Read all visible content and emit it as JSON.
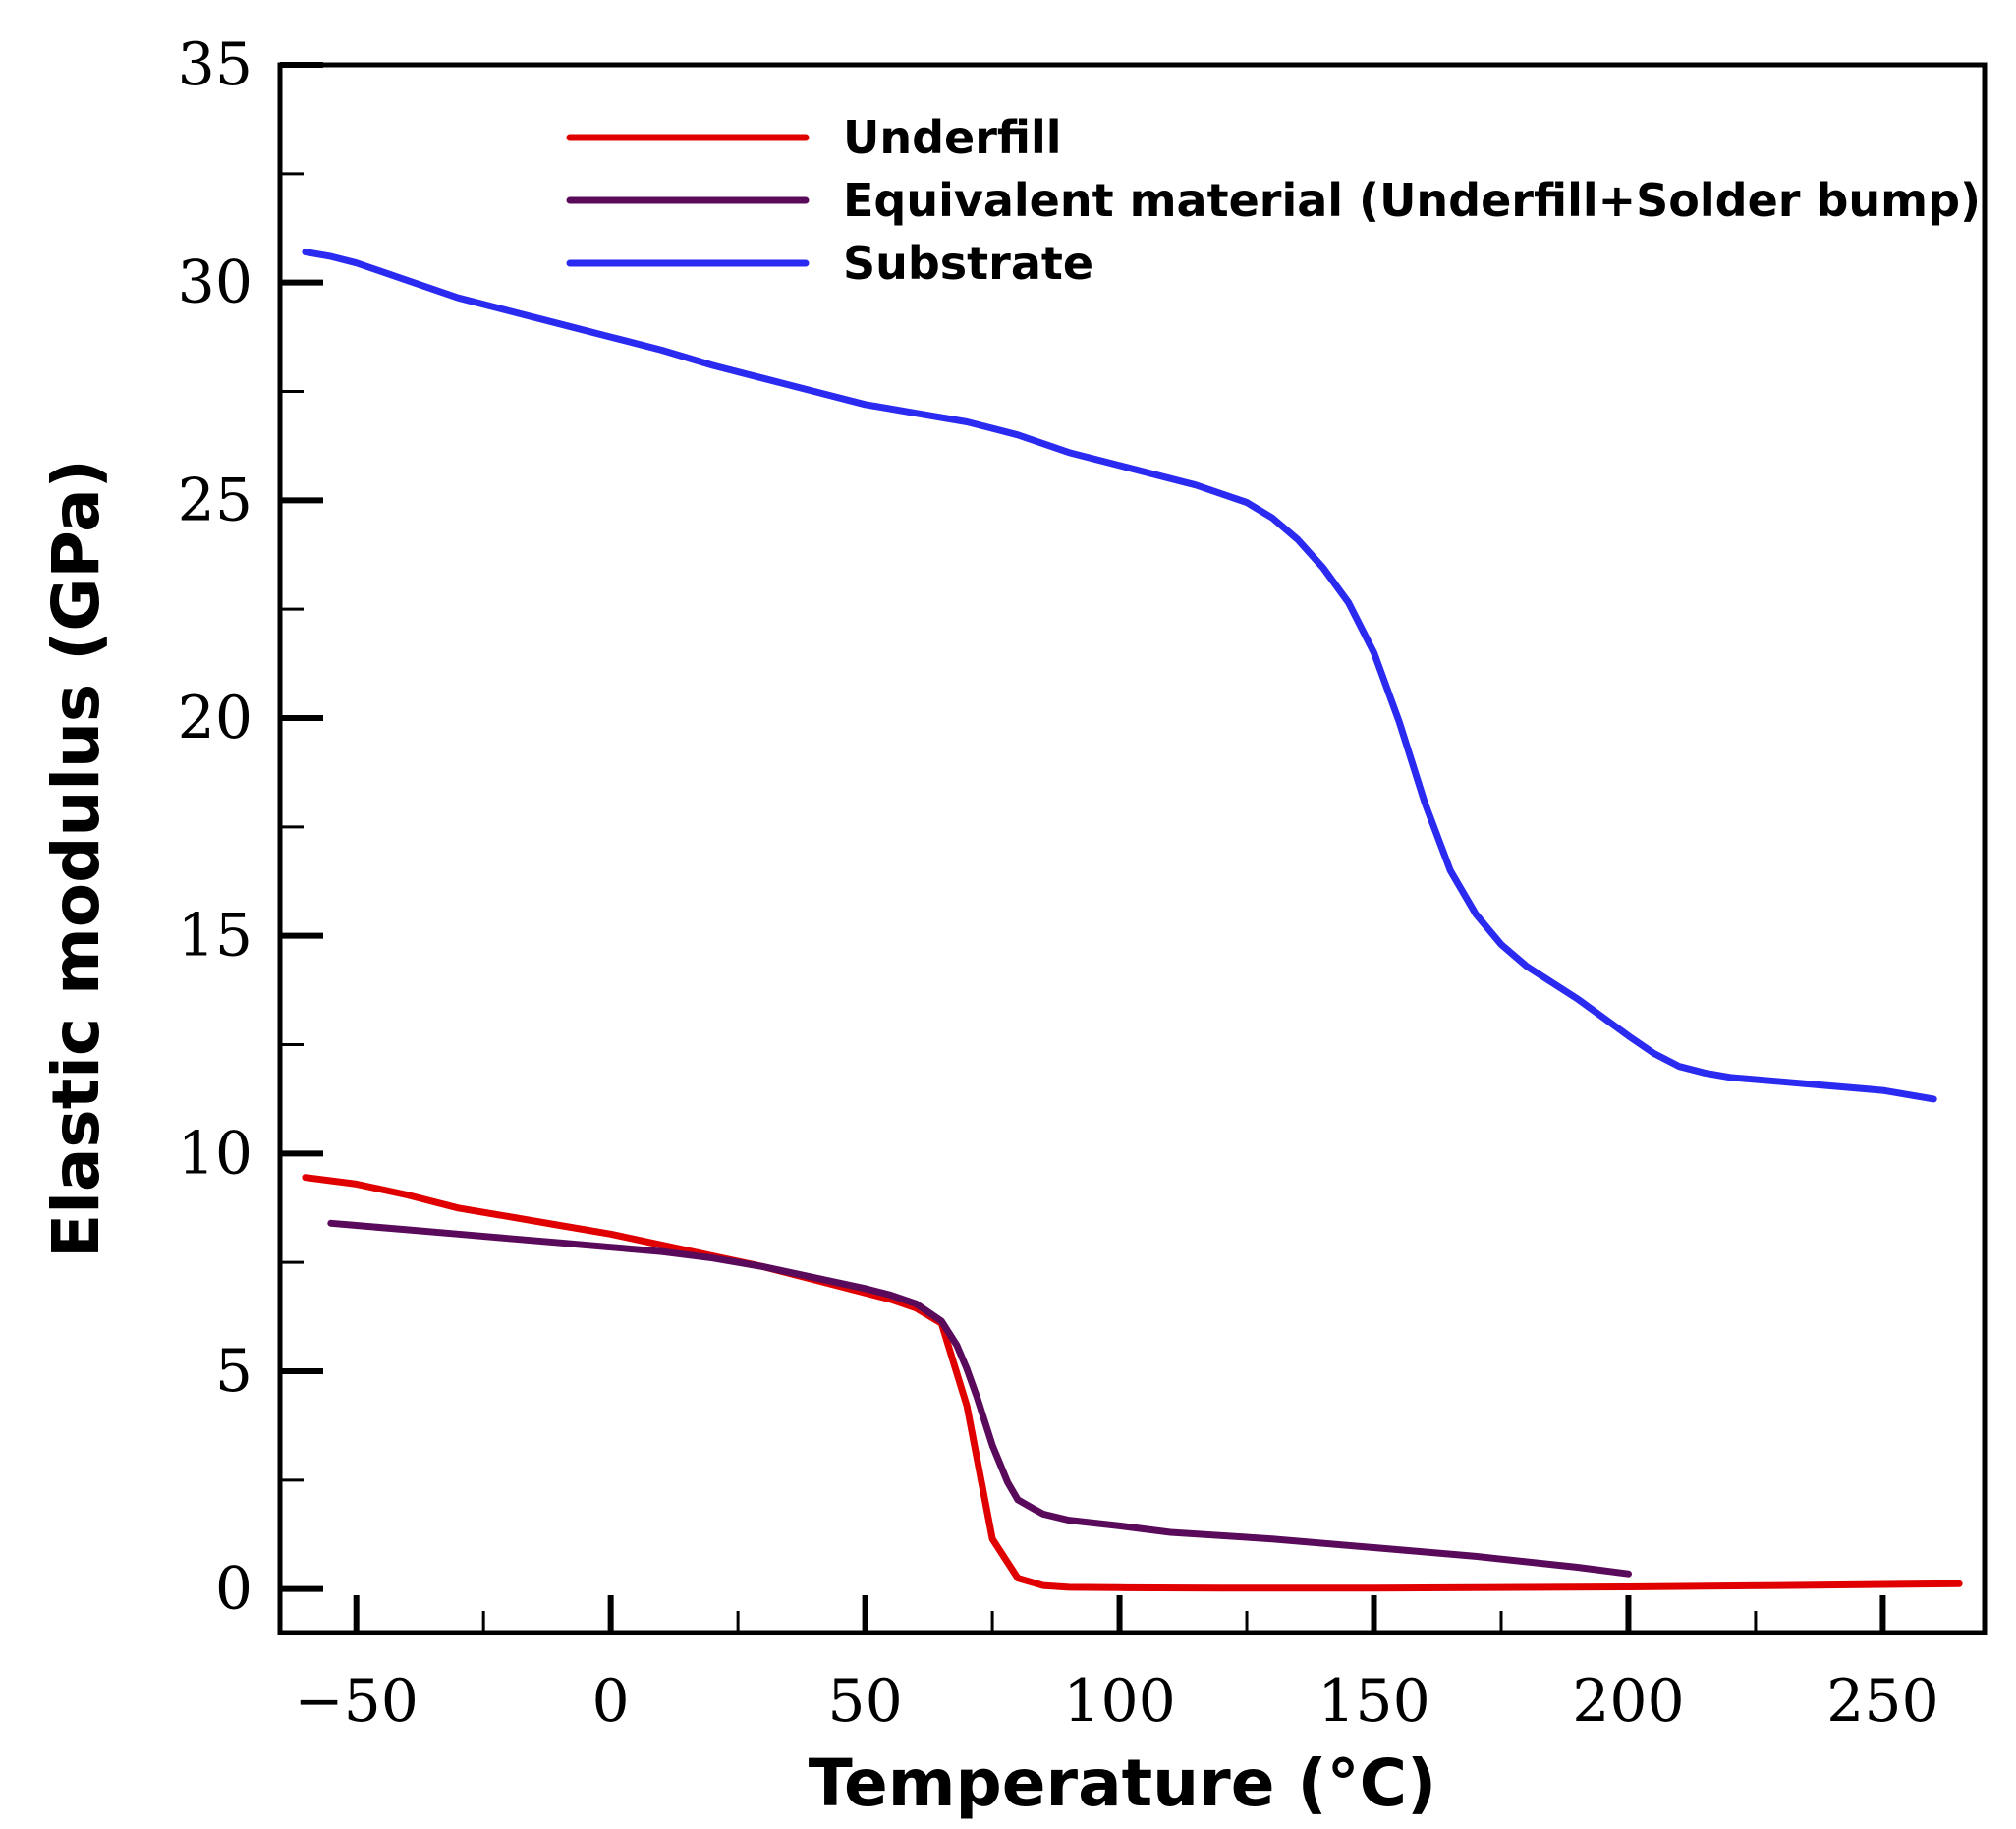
{
  "chart_data": {
    "type": "line",
    "title": "",
    "xlabel": "Temperature (°C)",
    "ylabel": "Elastic modulus (GPa)",
    "xlim": [
      -65,
      270
    ],
    "ylim": [
      -1,
      35
    ],
    "grid": false,
    "legend_position": "top-center",
    "x_ticks": [
      -50,
      0,
      50,
      100,
      150,
      200,
      250
    ],
    "x_tick_labels": [
      "−50",
      "0",
      "50",
      "100",
      "150",
      "200",
      "250"
    ],
    "x_minor_ticks": [
      -25,
      25,
      75,
      125,
      175,
      225
    ],
    "y_ticks": [
      0,
      5,
      10,
      15,
      20,
      25,
      30,
      35
    ],
    "y_tick_labels": [
      "0",
      "5",
      "10",
      "15",
      "20",
      "25",
      "30",
      "35"
    ],
    "y_minor_ticks": [
      2.5,
      7.5,
      12.5,
      17.5,
      22.5,
      27.5,
      32.5
    ],
    "series": [
      {
        "name": "Underfill",
        "color": "#e00000",
        "x": [
          -60,
          -50,
          -40,
          -30,
          -20,
          -10,
          0,
          10,
          20,
          30,
          40,
          50,
          55,
          60,
          65,
          70,
          75,
          80,
          85,
          90,
          100,
          120,
          150,
          200,
          230,
          265
        ],
        "y": [
          9.45,
          9.3,
          9.05,
          8.75,
          8.55,
          8.35,
          8.15,
          7.9,
          7.65,
          7.4,
          7.1,
          6.8,
          6.65,
          6.45,
          6.1,
          4.2,
          1.15,
          0.25,
          0.08,
          0.04,
          0.03,
          0.02,
          0.02,
          0.05,
          0.08,
          0.12
        ]
      },
      {
        "name": "Equivalent material (Underfill+Solder bump)",
        "color": "#5a0a5a",
        "x": [
          -55,
          -50,
          -40,
          -30,
          -20,
          -10,
          0,
          10,
          20,
          30,
          40,
          50,
          55,
          60,
          65,
          68,
          70,
          72,
          75,
          78,
          80,
          83,
          85,
          90,
          100,
          110,
          130,
          150,
          170,
          190,
          200
        ],
        "y": [
          8.4,
          8.35,
          8.25,
          8.15,
          8.05,
          7.95,
          7.85,
          7.75,
          7.6,
          7.4,
          7.15,
          6.9,
          6.75,
          6.55,
          6.15,
          5.6,
          5.05,
          4.4,
          3.3,
          2.45,
          2.05,
          1.85,
          1.72,
          1.58,
          1.45,
          1.3,
          1.15,
          0.95,
          0.75,
          0.5,
          0.35
        ]
      },
      {
        "name": "Substrate",
        "color": "#2a2af0",
        "x": [
          -60,
          -55,
          -50,
          -40,
          -30,
          -20,
          -10,
          0,
          10,
          20,
          30,
          40,
          50,
          55,
          60,
          70,
          80,
          90,
          100,
          110,
          115,
          120,
          125,
          130,
          135,
          140,
          145,
          150,
          155,
          160,
          165,
          170,
          175,
          180,
          190,
          200,
          205,
          210,
          215,
          220,
          230,
          240,
          250,
          260
        ],
        "y": [
          30.7,
          30.6,
          30.45,
          30.05,
          29.65,
          29.35,
          29.05,
          28.75,
          28.45,
          28.1,
          27.8,
          27.5,
          27.2,
          27.1,
          27.0,
          26.8,
          26.5,
          26.1,
          25.8,
          25.5,
          25.35,
          25.15,
          24.95,
          24.6,
          24.1,
          23.45,
          22.65,
          21.5,
          19.9,
          18.05,
          16.5,
          15.5,
          14.8,
          14.3,
          13.55,
          12.7,
          12.3,
          12.0,
          11.85,
          11.75,
          11.65,
          11.55,
          11.45,
          11.25
        ]
      }
    ]
  }
}
